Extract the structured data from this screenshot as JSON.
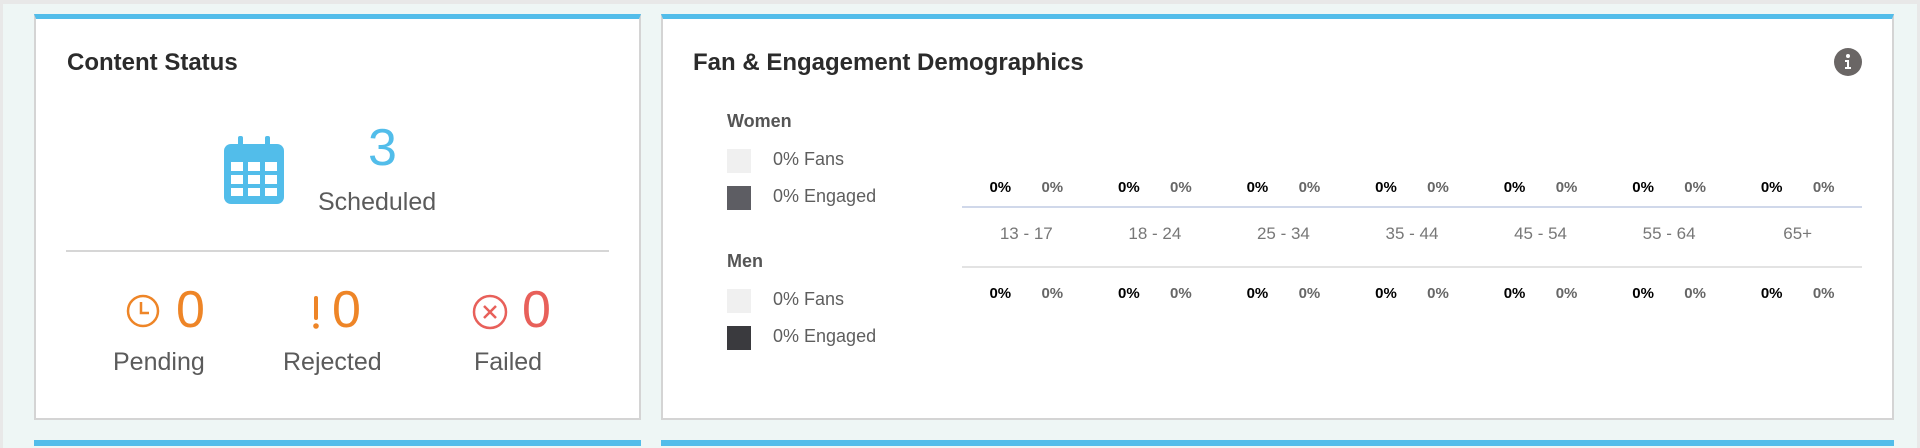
{
  "content_status": {
    "title": "Content Status",
    "scheduled": {
      "value": "3",
      "label": "Scheduled",
      "icon": "calendar-icon",
      "color": "#52bdea"
    },
    "pending": {
      "value": "0",
      "label": "Pending",
      "icon": "clock-icon",
      "color": "#ee8527"
    },
    "rejected": {
      "value": "0",
      "label": "Rejected",
      "icon": "exclamation-icon",
      "color": "#ee8527"
    },
    "failed": {
      "value": "0",
      "label": "Failed",
      "icon": "x-circle-icon",
      "color": "#e8605a"
    }
  },
  "demographics": {
    "title": "Fan & Engagement Demographics",
    "info_icon": "info-icon",
    "legend": {
      "women": {
        "label": "Women",
        "fans": "0% Fans",
        "engaged": "0% Engaged"
      },
      "men": {
        "label": "Men",
        "fans": "0% Fans",
        "engaged": "0% Engaged"
      }
    },
    "colors": {
      "fans": "#f0f0f0",
      "women_engaged": "#5d5d63",
      "men_engaged": "#3a3a3e"
    },
    "age_groups": [
      {
        "label": "13 - 17",
        "women_fans": "0%",
        "women_engaged": "0%",
        "men_fans": "0%",
        "men_engaged": "0%"
      },
      {
        "label": "18 - 24",
        "women_fans": "0%",
        "women_engaged": "0%",
        "men_fans": "0%",
        "men_engaged": "0%"
      },
      {
        "label": "25 - 34",
        "women_fans": "0%",
        "women_engaged": "0%",
        "men_fans": "0%",
        "men_engaged": "0%"
      },
      {
        "label": "35 - 44",
        "women_fans": "0%",
        "women_engaged": "0%",
        "men_fans": "0%",
        "men_engaged": "0%"
      },
      {
        "label": "45 - 54",
        "women_fans": "0%",
        "women_engaged": "0%",
        "men_fans": "0%",
        "men_engaged": "0%"
      },
      {
        "label": "55 - 64",
        "women_fans": "0%",
        "women_engaged": "0%",
        "men_fans": "0%",
        "men_engaged": "0%"
      },
      {
        "label": "65+",
        "women_fans": "0%",
        "women_engaged": "0%",
        "men_fans": "0%",
        "men_engaged": "0%"
      }
    ]
  }
}
